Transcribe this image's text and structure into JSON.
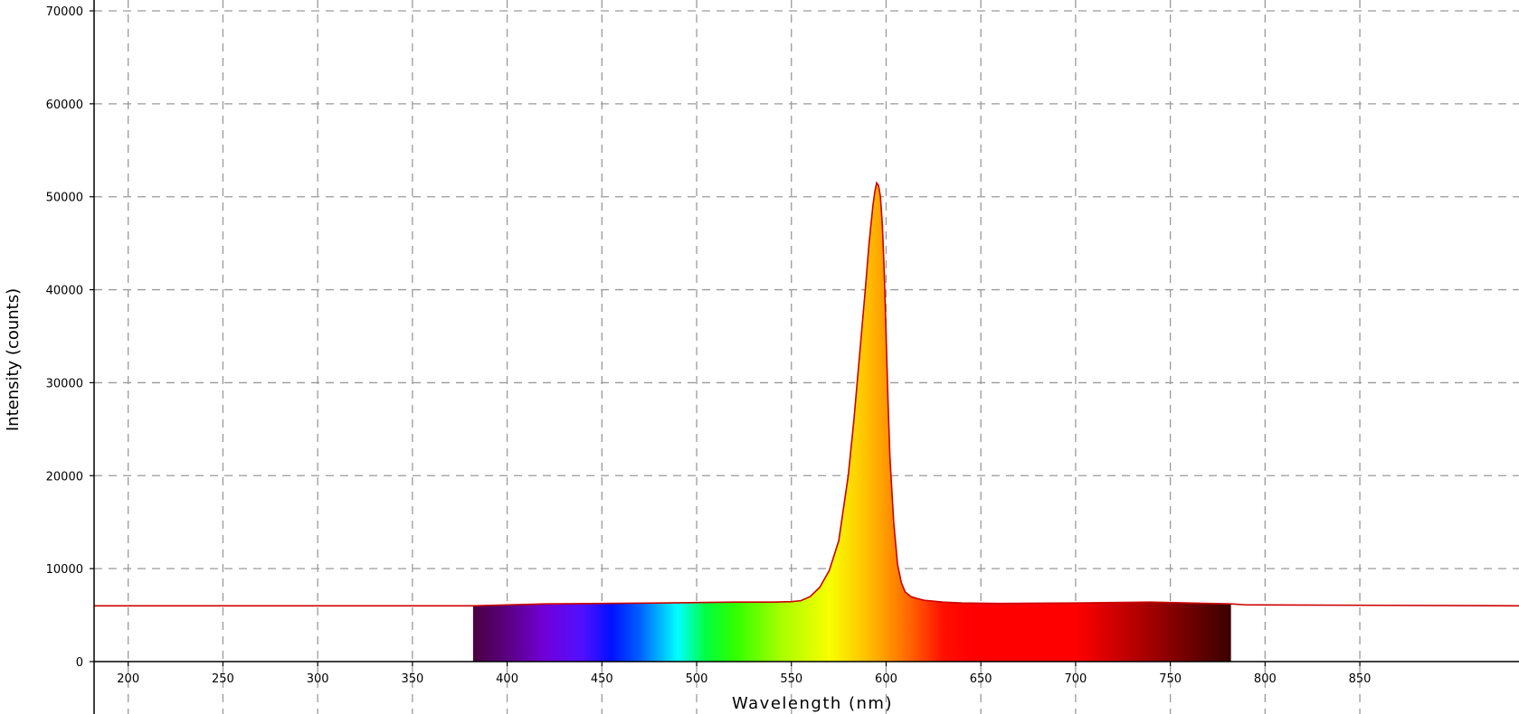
{
  "chart_data": {
    "type": "area",
    "title": "",
    "xlabel": "Wavelength (nm)",
    "ylabel": "Intensity (counts)",
    "xlim": [
      182,
      934
    ],
    "ylim": [
      0,
      70000
    ],
    "x_ticks": [
      200,
      250,
      300,
      350,
      400,
      450,
      500,
      550,
      600,
      650,
      700,
      750,
      800,
      850
    ],
    "x_tick_labels": [
      "200",
      "250",
      "300",
      "350",
      "400",
      "450",
      "500",
      "550",
      "600",
      "650",
      "700",
      "750",
      "800",
      "850"
    ],
    "y_ticks": [
      0,
      10000,
      20000,
      30000,
      40000,
      50000,
      60000,
      70000
    ],
    "y_tick_labels": [
      "0",
      "10000",
      "20000",
      "30000",
      "40000",
      "50000",
      "60000",
      "70000"
    ],
    "grid": true,
    "grid_style": "dashed",
    "line_color": "#cc0000",
    "fill": "visible-spectrum gradient",
    "spectrum_fill_range": [
      382,
      782
    ],
    "baseline": 6000,
    "series": [
      {
        "x": [
          182,
          380,
          382,
          400,
          420,
          450,
          480,
          500,
          520,
          540,
          550,
          555,
          560,
          565,
          570,
          575,
          580,
          583,
          586,
          589,
          591,
          593,
          594,
          595,
          596,
          597,
          598,
          599,
          600,
          601,
          602,
          604,
          606,
          608,
          610,
          613,
          616,
          620,
          625,
          630,
          640,
          660,
          700,
          720,
          740,
          760,
          782,
          790,
          934
        ],
        "y": [
          6000,
          6000,
          6000,
          6100,
          6200,
          6250,
          6300,
          6350,
          6400,
          6400,
          6450,
          6550,
          7000,
          8000,
          9800,
          13000,
          20000,
          26000,
          33000,
          40000,
          45000,
          49000,
          50500,
          51500,
          51200,
          50000,
          47000,
          42000,
          35000,
          28000,
          22000,
          15000,
          10500,
          8500,
          7500,
          7000,
          6800,
          6600,
          6500,
          6400,
          6300,
          6250,
          6300,
          6350,
          6400,
          6300,
          6200,
          6100,
          6000
        ]
      }
    ]
  }
}
